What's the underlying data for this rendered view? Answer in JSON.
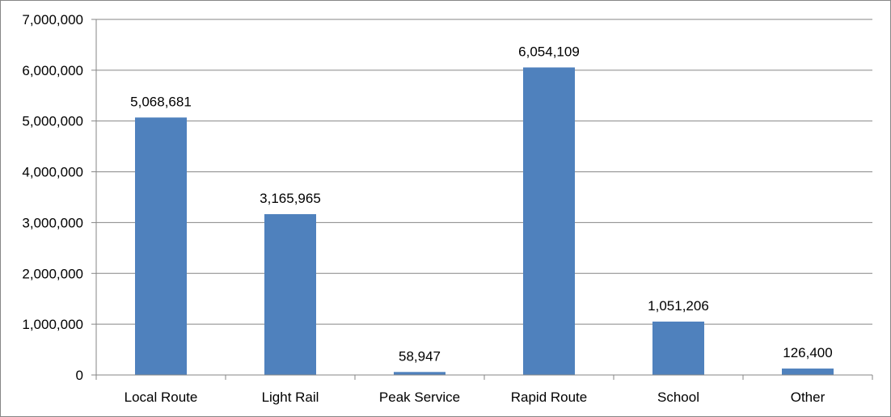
{
  "chart_data": {
    "type": "bar",
    "title": "",
    "xlabel": "",
    "ylabel": "",
    "categories": [
      "Local Route",
      "Light Rail",
      "Peak Service",
      "Rapid Route",
      "School",
      "Other"
    ],
    "values": [
      5068681,
      3165965,
      58947,
      6054109,
      1051206,
      126400
    ],
    "data_labels": [
      "5,068,681",
      "3,165,965",
      "58,947",
      "6,054,109",
      "1,051,206",
      "126,400"
    ],
    "ylim": [
      0,
      7000000
    ],
    "yticks": [
      0,
      1000000,
      2000000,
      3000000,
      4000000,
      5000000,
      6000000,
      7000000
    ],
    "ytick_labels": [
      "0",
      "1,000,000",
      "2,000,000",
      "3,000,000",
      "4,000,000",
      "5,000,000",
      "6,000,000",
      "7,000,000"
    ],
    "grid": true,
    "legend": "none",
    "bar_color": "#4F81BD",
    "grid_color": "#868686"
  }
}
